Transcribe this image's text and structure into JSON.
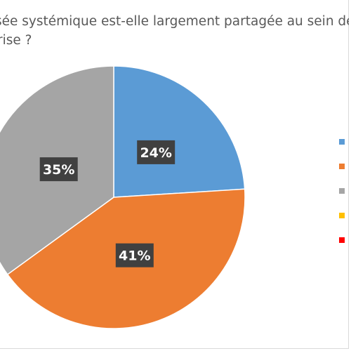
{
  "chart_data": {
    "type": "pie",
    "title_lines": [
      "sée systémique est-elle largement partagée au sein de",
      "rise ?"
    ],
    "slices": [
      {
        "label": "",
        "value": 24,
        "display": "24%",
        "color": "#5b9bd5"
      },
      {
        "label": "",
        "value": 41,
        "display": "41%",
        "color": "#ed7d31"
      },
      {
        "label": "",
        "value": 35,
        "display": "35%",
        "color": "#a5a5a5"
      },
      {
        "label": "",
        "value": 0,
        "display": "",
        "color": "#ffc000"
      },
      {
        "label": "",
        "value": 0,
        "display": "",
        "color": "#ff0000"
      }
    ],
    "start_angle_deg": 0,
    "direction": "clockwise",
    "legend_position": "right",
    "label_style": "white bold text on dark box"
  }
}
